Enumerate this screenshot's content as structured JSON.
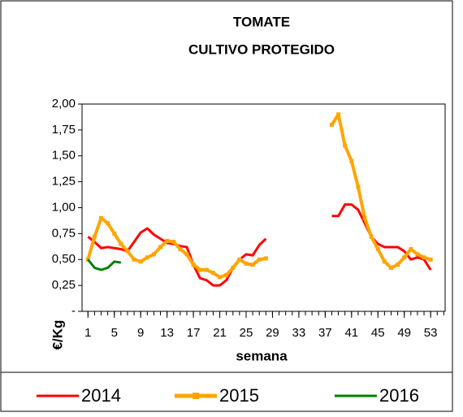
{
  "chart_data": {
    "type": "line",
    "title": "TOMATE",
    "subtitle": "CULTIVO PROTEGIDO",
    "xlabel": "semana",
    "ylabel": "€/Kg",
    "x": [
      1,
      2,
      3,
      4,
      5,
      6,
      7,
      8,
      9,
      10,
      11,
      12,
      13,
      14,
      15,
      16,
      17,
      18,
      19,
      20,
      21,
      22,
      23,
      24,
      25,
      26,
      27,
      28,
      29,
      30,
      31,
      32,
      33,
      34,
      35,
      36,
      37,
      38,
      39,
      40,
      41,
      42,
      43,
      44,
      45,
      46,
      47,
      48,
      49,
      50,
      51,
      52,
      53
    ],
    "xlim": [
      0.1,
      55.2
    ],
    "xticks": [
      1,
      5,
      9,
      13,
      17,
      21,
      25,
      29,
      33,
      37,
      41,
      45,
      49,
      53
    ],
    "ylim": [
      0,
      2
    ],
    "yticks": [
      {
        "value": 0,
        "label": "-"
      },
      {
        "value": 0.25,
        "label": "0,25"
      },
      {
        "value": 0.5,
        "label": "0,50"
      },
      {
        "value": 0.75,
        "label": "0,75"
      },
      {
        "value": 1,
        "label": "1,00"
      },
      {
        "value": 1.25,
        "label": "1,25"
      },
      {
        "value": 1.5,
        "label": "1,50"
      },
      {
        "value": 1.75,
        "label": "1,75"
      },
      {
        "value": 2,
        "label": "2,00"
      }
    ],
    "legend": "bottom",
    "series": [
      {
        "name": "2014",
        "color": "#ff0000",
        "marker": false,
        "values": [
          0.72,
          0.67,
          0.61,
          0.62,
          0.61,
          0.6,
          0.58,
          0.67,
          0.76,
          0.8,
          0.74,
          0.7,
          0.66,
          0.65,
          0.63,
          0.62,
          0.45,
          0.32,
          0.3,
          0.25,
          0.25,
          0.3,
          0.42,
          0.5,
          0.55,
          0.54,
          0.64,
          0.7,
          null,
          null,
          null,
          null,
          null,
          null,
          null,
          null,
          null,
          0.92,
          0.92,
          1.03,
          1.03,
          0.98,
          0.85,
          0.72,
          0.65,
          0.62,
          0.62,
          0.62,
          0.58,
          0.5,
          0.52,
          0.5,
          0.4
        ]
      },
      {
        "name": "2015",
        "color": "#ffa500",
        "marker": true,
        "values": [
          0.5,
          0.72,
          0.9,
          0.85,
          0.75,
          0.65,
          0.58,
          0.5,
          0.48,
          0.52,
          0.55,
          0.62,
          0.68,
          0.67,
          0.6,
          0.55,
          0.45,
          0.4,
          0.4,
          0.37,
          0.33,
          0.35,
          0.42,
          0.5,
          0.46,
          0.45,
          0.5,
          0.51,
          null,
          null,
          null,
          null,
          null,
          null,
          null,
          null,
          null,
          1.8,
          1.9,
          1.6,
          1.45,
          1.2,
          0.9,
          0.72,
          0.6,
          0.48,
          0.42,
          0.45,
          0.52,
          0.6,
          0.55,
          0.52,
          0.5
        ]
      },
      {
        "name": "2016",
        "color": "#008000",
        "marker": false,
        "values": [
          0.5,
          0.42,
          0.4,
          0.42,
          0.48,
          0.47,
          null,
          null,
          null,
          null,
          null,
          null,
          null,
          null,
          null,
          null,
          null,
          null,
          null,
          null,
          null,
          null,
          null,
          null,
          null,
          null,
          null,
          null,
          null,
          null,
          null,
          null,
          null,
          null,
          null,
          null,
          null,
          null,
          null,
          null,
          null,
          null,
          null,
          null,
          null,
          null,
          null,
          null,
          null,
          null,
          null,
          null,
          null
        ]
      }
    ]
  }
}
